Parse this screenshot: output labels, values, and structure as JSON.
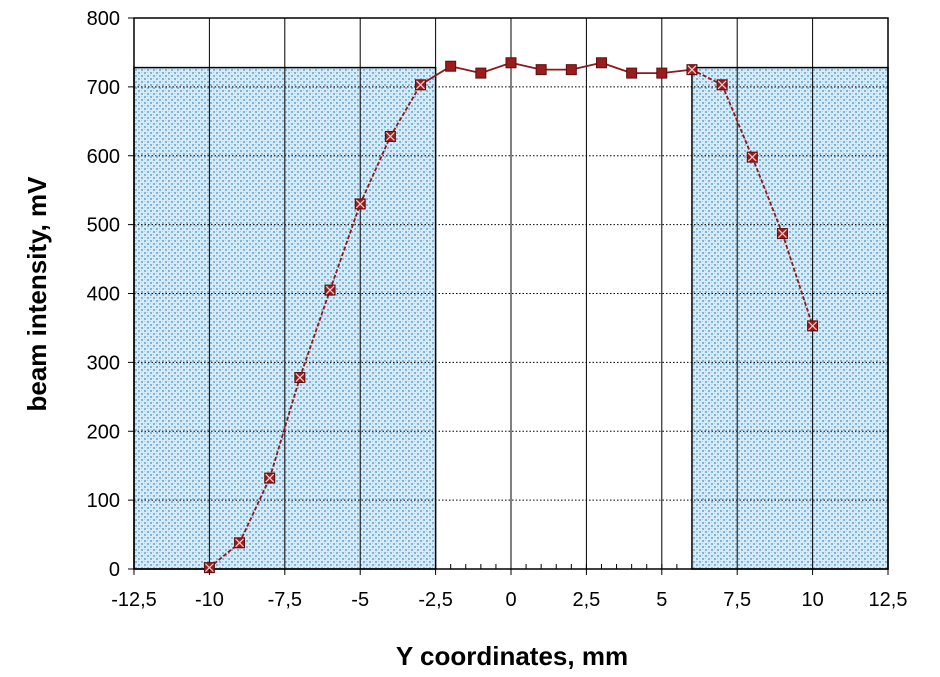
{
  "chart_data": {
    "type": "line",
    "title": "",
    "xlabel": "Y coordinates, mm",
    "ylabel": "beam intensity, mV",
    "xlim": [
      -12.5,
      12.5
    ],
    "ylim": [
      0,
      800
    ],
    "grid": true,
    "legend": "none",
    "x_ticks": [
      -12.5,
      -10,
      -7.5,
      -5,
      -2.5,
      0,
      2.5,
      5,
      7.5,
      10,
      12.5
    ],
    "x_tick_labels": [
      "-12,5",
      "-10",
      "-7,5",
      "-5",
      "-2,5",
      "0",
      "2,5",
      "5",
      "7,5",
      "10",
      "12,5"
    ],
    "y_ticks": [
      0,
      100,
      200,
      300,
      400,
      500,
      600,
      700,
      800
    ],
    "y_tick_labels": [
      "0",
      "100",
      "200",
      "300",
      "400",
      "500",
      "600",
      "700",
      "800"
    ],
    "shaded_regions": [
      {
        "x0": -12.5,
        "x1": -2.5,
        "y0": 0,
        "y1": 728
      },
      {
        "x0": 6,
        "x1": 12.5,
        "y0": 0,
        "y1": 728
      }
    ],
    "series": [
      {
        "x": [
          -10,
          -9,
          -8,
          -7,
          -6,
          -5,
          -4,
          -3,
          -2,
          -1,
          0,
          1,
          2,
          3,
          4,
          5,
          6,
          7,
          8,
          9,
          10
        ],
        "values": [
          2,
          38,
          132,
          278,
          405,
          530,
          628,
          703,
          730,
          720,
          735,
          725,
          725,
          735,
          720,
          720,
          725,
          703,
          598,
          487,
          353
        ]
      }
    ],
    "colors": {
      "line": "#8b1a1a",
      "marker": "#9b1c1c",
      "shade_fill": "#c9e6f5",
      "shade_dots": "#7fb3d9"
    }
  }
}
